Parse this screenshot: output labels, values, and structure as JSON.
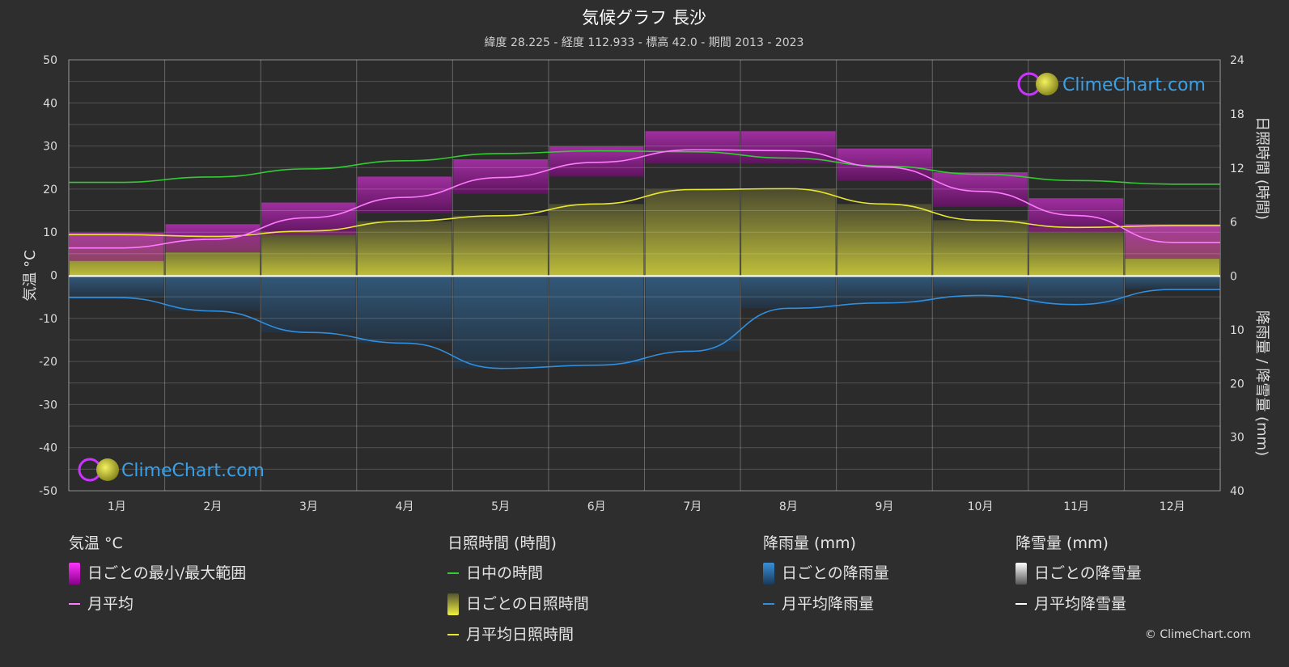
{
  "chart_data": {
    "type": "line",
    "title": "気候グラフ 長沙",
    "subtitle": "緯度 28.225 - 経度 112.933 - 標高 42.0 - 期間 2013 - 2023",
    "categories": [
      "1月",
      "2月",
      "3月",
      "4月",
      "5月",
      "6月",
      "7月",
      "8月",
      "9月",
      "10月",
      "11月",
      "12月"
    ],
    "y_left": {
      "label": "気温 °C",
      "range": [
        -50,
        50
      ],
      "ticks": [
        "50",
        "40",
        "30",
        "20",
        "10",
        "0",
        "-10",
        "-20",
        "-30",
        "-40",
        "-50"
      ]
    },
    "y_right_top": {
      "label": "日照時間 (時間)",
      "range": [
        0,
        24
      ],
      "ticks": [
        "24",
        "18",
        "12",
        "6",
        "0"
      ]
    },
    "y_right_bottom": {
      "label": "降雨量 / 降雪量 (mm)",
      "range": [
        0,
        40
      ],
      "ticks": [
        "0",
        "10",
        "20",
        "30",
        "40"
      ]
    },
    "series": [
      {
        "name": "日中の時間",
        "color": "#33cc33",
        "unit": "hours",
        "values": [
          10.4,
          11.0,
          11.9,
          12.8,
          13.6,
          13.9,
          13.8,
          13.1,
          12.2,
          11.3,
          10.6,
          10.2
        ]
      },
      {
        "name": "月平均日照時間",
        "color": "#e8e832",
        "unit": "hours",
        "values": [
          4.6,
          4.4,
          5.0,
          6.1,
          6.7,
          8.0,
          9.6,
          9.7,
          8.0,
          6.2,
          5.4,
          5.6
        ]
      },
      {
        "name": "月平均",
        "color": "#ff7aff",
        "unit": "°C",
        "values": [
          6.5,
          8.5,
          13.5,
          18.2,
          22.8,
          26.3,
          29.2,
          29.0,
          25.2,
          19.6,
          14.0,
          7.8
        ]
      },
      {
        "name": "月平均降雨量",
        "color": "#2f8fe0",
        "unit": "mm",
        "values": [
          4.0,
          6.5,
          10.5,
          12.5,
          17.2,
          16.6,
          14.0,
          6.0,
          5.0,
          3.6,
          5.3,
          2.5
        ]
      },
      {
        "name": "日ごとの最小/最大範囲",
        "color": "#ee22ee",
        "unit": "°C",
        "min": [
          3.5,
          5.5,
          9.5,
          14.5,
          19.0,
          23.0,
          26.0,
          26.0,
          22.0,
          16.0,
          10.0,
          4.0
        ],
        "max": [
          10.0,
          12.0,
          17.0,
          23.0,
          27.0,
          30.0,
          33.5,
          33.5,
          29.5,
          24.0,
          18.0,
          12.0
        ]
      },
      {
        "name": "日ごとの日照時間",
        "color": "#c8c83a",
        "unit": "hours",
        "values": [
          4.6,
          4.4,
          5.0,
          6.1,
          6.7,
          8.0,
          9.6,
          9.7,
          8.0,
          6.2,
          5.4,
          5.6
        ]
      },
      {
        "name": "日ごとの降雨量",
        "color": "#2a6fa8",
        "unit": "mm",
        "values": [
          4.0,
          6.5,
          10.5,
          12.5,
          17.2,
          16.6,
          14.0,
          6.0,
          5.0,
          3.6,
          5.3,
          2.5
        ]
      }
    ],
    "grid": true
  },
  "brand": {
    "name": "ClimeChart.com",
    "copyright": "© ClimeChart.com"
  },
  "legend": {
    "temp": {
      "header": "気温 °C",
      "range": "日ごとの最小/最大範囲",
      "avg": "月平均"
    },
    "sun": {
      "header": "日照時間 (時間)",
      "daylight": "日中の時間",
      "daily": "日ごとの日照時間",
      "avg": "月平均日照時間"
    },
    "rain": {
      "header": "降雨量 (mm)",
      "daily": "日ごとの降雨量",
      "avg": "月平均降雨量"
    },
    "snow": {
      "header": "降雪量 (mm)",
      "daily": "日ごとの降雪量",
      "avg": "月平均降雪量"
    }
  }
}
